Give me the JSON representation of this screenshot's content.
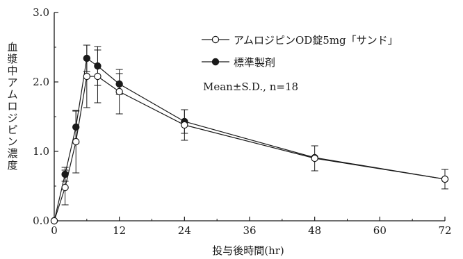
{
  "chart_data": {
    "type": "line",
    "title": "",
    "xlabel": "投与後時間(hr)",
    "ylabel": "血漿中アムロジピン濃度",
    "xlim": [
      0,
      72
    ],
    "ylim": [
      0,
      3.0
    ],
    "x_ticks": [
      "0",
      "12",
      "24",
      "36",
      "48",
      "60",
      "72"
    ],
    "y_ticks": [
      "0.0",
      "1.0",
      "2.0",
      "3.0"
    ],
    "grid": false,
    "legend_position": "top-right",
    "annotation": "Mean±S.D., n=18",
    "series": [
      {
        "name": "アムロジピンOD錠5mg「サンド」",
        "marker": "open-circle",
        "x": [
          0,
          2,
          4,
          6,
          8,
          12,
          24,
          48,
          72
        ],
        "values": [
          0.0,
          0.48,
          1.14,
          2.08,
          2.08,
          1.86,
          1.38,
          0.9,
          0.6
        ],
        "sd": [
          0,
          0.25,
          0.45,
          0.45,
          0.38,
          0.32,
          0.22,
          0.18,
          0.14
        ]
      },
      {
        "name": "標準製剤",
        "marker": "filled-circle",
        "x": [
          0,
          2,
          4,
          6,
          8,
          12,
          24,
          48,
          72
        ],
        "values": [
          0.0,
          0.67,
          1.35,
          2.34,
          2.23,
          1.97,
          1.43,
          0.91,
          0.6
        ],
        "sd": [
          0,
          0.1,
          0.23,
          0.19,
          0.28,
          0.15,
          0.17,
          0.0,
          0.0
        ]
      }
    ]
  }
}
